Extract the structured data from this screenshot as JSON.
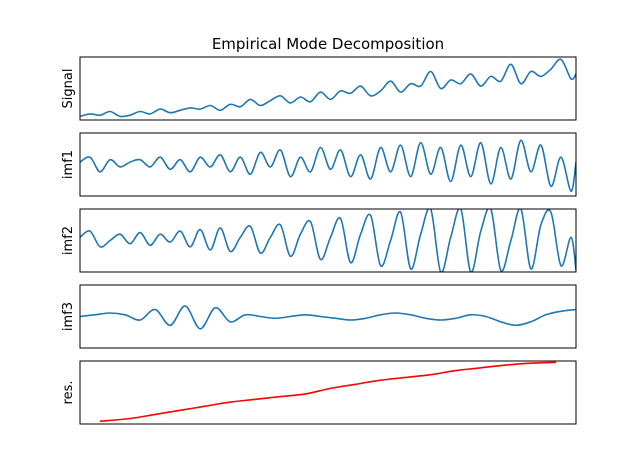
{
  "chart_data": {
    "type": "line",
    "title": "Empirical Mode Decomposition",
    "xlabel": "",
    "ticks": "none",
    "grid": false,
    "panels": [
      {
        "name": "Signal",
        "ylabel": "Signal",
        "color": "#1f77b4",
        "ylim": [
          -0.3,
          2.3
        ]
      },
      {
        "name": "imf1",
        "ylabel": "imf1",
        "color": "#1f77b4",
        "ylim": [
          -0.7,
          0.6
        ]
      },
      {
        "name": "imf2",
        "ylabel": "imf2",
        "color": "#1f77b4",
        "ylim": [
          -1.0,
          1.0
        ]
      },
      {
        "name": "imf3",
        "ylabel": "imf3",
        "color": "#1f77b4",
        "ylim": [
          -0.9,
          0.9
        ]
      },
      {
        "name": "res.",
        "ylabel": "res.",
        "color": "#ff0000",
        "ylim": [
          -0.3,
          2.0
        ]
      }
    ],
    "series": [
      {
        "name": "Signal",
        "color": "#1f77b4",
        "x": [
          0,
          2,
          4,
          6,
          8,
          10,
          12,
          14,
          16,
          18,
          20,
          22,
          24,
          26,
          28,
          30,
          32,
          34,
          36,
          38,
          40,
          42,
          44,
          46,
          48,
          50,
          52,
          54,
          56,
          58,
          60,
          62,
          64,
          66,
          68,
          70,
          72,
          74,
          76,
          78,
          80,
          82,
          84,
          86,
          88,
          90,
          92,
          94,
          96,
          98,
          99
        ],
        "y": [
          -0.15,
          -0.05,
          -0.1,
          0.05,
          -0.15,
          -0.1,
          0.05,
          -0.05,
          0.15,
          0.0,
          0.1,
          0.2,
          0.15,
          0.3,
          0.1,
          0.35,
          0.25,
          0.55,
          0.3,
          0.5,
          0.7,
          0.4,
          0.65,
          0.45,
          0.85,
          0.55,
          0.9,
          0.8,
          1.1,
          0.7,
          0.9,
          1.3,
          0.85,
          1.2,
          1.1,
          1.7,
          1.0,
          1.35,
          1.2,
          1.6,
          1.1,
          1.5,
          1.3,
          2.0,
          1.2,
          1.7,
          1.5,
          1.8,
          2.2,
          1.4,
          1.6
        ]
      },
      {
        "name": "imf1",
        "color": "#1f77b4",
        "x": [
          0,
          2,
          4,
          6,
          8,
          10,
          12,
          14,
          16,
          18,
          20,
          22,
          24,
          26,
          28,
          30,
          32,
          34,
          36,
          38,
          40,
          42,
          44,
          46,
          48,
          50,
          52,
          54,
          56,
          58,
          60,
          62,
          64,
          66,
          68,
          70,
          72,
          74,
          76,
          78,
          80,
          82,
          84,
          86,
          88,
          90,
          92,
          94,
          96,
          98,
          99
        ],
        "y": [
          0.0,
          0.1,
          -0.2,
          0.05,
          -0.1,
          0.0,
          0.05,
          -0.1,
          0.1,
          -0.15,
          0.05,
          -0.2,
          0.1,
          -0.1,
          0.15,
          -0.2,
          0.1,
          -0.25,
          0.2,
          -0.1,
          0.25,
          -0.3,
          0.1,
          -0.2,
          0.3,
          -0.15,
          0.25,
          -0.3,
          0.15,
          -0.35,
          0.3,
          -0.2,
          0.35,
          -0.3,
          0.4,
          -0.25,
          0.3,
          -0.4,
          0.35,
          -0.3,
          0.4,
          -0.45,
          0.3,
          -0.35,
          0.45,
          -0.2,
          0.35,
          -0.5,
          0.1,
          -0.6,
          0.0
        ]
      },
      {
        "name": "imf2",
        "color": "#1f77b4",
        "x": [
          0,
          2,
          4,
          6,
          8,
          10,
          12,
          14,
          16,
          18,
          20,
          22,
          24,
          26,
          28,
          30,
          32,
          34,
          36,
          38,
          40,
          42,
          44,
          46,
          48,
          50,
          52,
          54,
          56,
          58,
          60,
          62,
          64,
          66,
          68,
          70,
          72,
          74,
          76,
          78,
          80,
          82,
          84,
          86,
          88,
          90,
          92,
          94,
          96,
          98,
          99
        ],
        "y": [
          0.1,
          0.3,
          -0.2,
          0.0,
          0.2,
          -0.1,
          0.25,
          -0.15,
          0.2,
          -0.05,
          0.3,
          -0.2,
          0.35,
          -0.3,
          0.4,
          -0.35,
          0.1,
          0.45,
          -0.4,
          0.1,
          0.5,
          -0.5,
          0.2,
          0.6,
          -0.6,
          0.1,
          0.7,
          -0.7,
          0.2,
          0.8,
          -0.8,
          0.0,
          0.9,
          -0.9,
          0.2,
          1.0,
          -1.0,
          0.1,
          1.0,
          -1.0,
          0.3,
          1.0,
          -0.95,
          0.0,
          1.0,
          -0.9,
          0.5,
          0.9,
          -0.8,
          0.1,
          -0.95
        ]
      },
      {
        "name": "imf3",
        "color": "#1f77b4",
        "x": [
          0,
          3,
          6,
          9,
          12,
          15,
          18,
          21,
          24,
          27,
          30,
          33,
          36,
          39,
          42,
          45,
          48,
          51,
          54,
          57,
          60,
          63,
          66,
          69,
          72,
          75,
          78,
          81,
          84,
          87,
          90,
          93,
          96,
          99
        ],
        "y": [
          0.0,
          0.05,
          0.1,
          0.05,
          -0.1,
          0.2,
          -0.25,
          0.3,
          -0.35,
          0.25,
          -0.15,
          0.05,
          0.0,
          -0.05,
          0.0,
          0.05,
          0.0,
          -0.05,
          -0.1,
          -0.05,
          0.05,
          0.1,
          0.05,
          -0.05,
          -0.1,
          -0.05,
          0.05,
          0.0,
          -0.15,
          -0.25,
          -0.15,
          0.05,
          0.15,
          0.2
        ]
      },
      {
        "name": "res.",
        "color": "#ff0000",
        "x": [
          4,
          10,
          15,
          20,
          25,
          30,
          35,
          40,
          45,
          50,
          55,
          60,
          65,
          70,
          75,
          80,
          85,
          90,
          95
        ],
        "y": [
          -0.2,
          -0.1,
          0.05,
          0.2,
          0.35,
          0.5,
          0.6,
          0.7,
          0.8,
          1.0,
          1.15,
          1.3,
          1.4,
          1.5,
          1.65,
          1.75,
          1.85,
          1.92,
          1.95
        ]
      }
    ]
  }
}
